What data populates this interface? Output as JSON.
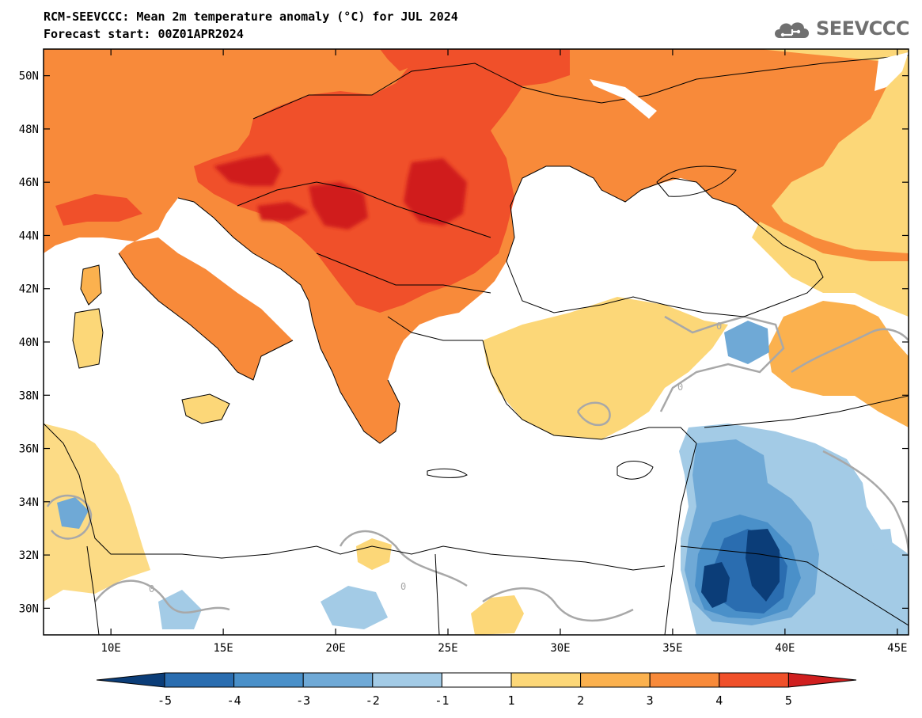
{
  "header": {
    "title": "RCM-SEEVCCC: Mean 2m temperature anomaly (°C) for JUL 2024",
    "subtitle": "Forecast start: 00Z01APR2024"
  },
  "logo": {
    "text": "SEEVCCC",
    "icon": "cloud-icon"
  },
  "map": {
    "lon_range": [
      7,
      45.5
    ],
    "lat_range": [
      29,
      51
    ],
    "lon_ticks": [
      {
        "value": 10,
        "label": "10E"
      },
      {
        "value": 15,
        "label": "15E"
      },
      {
        "value": 20,
        "label": "20E"
      },
      {
        "value": 25,
        "label": "25E"
      },
      {
        "value": 30,
        "label": "30E"
      },
      {
        "value": 35,
        "label": "35E"
      },
      {
        "value": 40,
        "label": "40E"
      },
      {
        "value": 45,
        "label": "45E"
      }
    ],
    "lat_ticks": [
      {
        "value": 30,
        "label": "30N"
      },
      {
        "value": 32,
        "label": "32N"
      },
      {
        "value": 34,
        "label": "34N"
      },
      {
        "value": 36,
        "label": "36N"
      },
      {
        "value": 38,
        "label": "38N"
      },
      {
        "value": 40,
        "label": "40N"
      },
      {
        "value": 42,
        "label": "42N"
      },
      {
        "value": 44,
        "label": "44N"
      },
      {
        "value": 46,
        "label": "46N"
      },
      {
        "value": 48,
        "label": "48N"
      },
      {
        "value": 50,
        "label": "50N"
      }
    ],
    "contour_labels": [
      "0",
      "0",
      "0",
      "0"
    ],
    "colors": {
      "sea": "#ffffff",
      "contour": "#a8a8a8",
      "border": "#000000"
    }
  },
  "legend": {
    "levels": [
      "-5",
      "-4",
      "-3",
      "-2",
      "-1",
      "1",
      "2",
      "3",
      "4",
      "5"
    ],
    "colors": [
      "#0b3d78",
      "#2a6db0",
      "#4a90c9",
      "#6fa9d6",
      "#a3cbe6",
      "#ffffff",
      "#fcd778",
      "#fbb14e",
      "#f88a3a",
      "#f0502a",
      "#d01f1f"
    ]
  }
}
